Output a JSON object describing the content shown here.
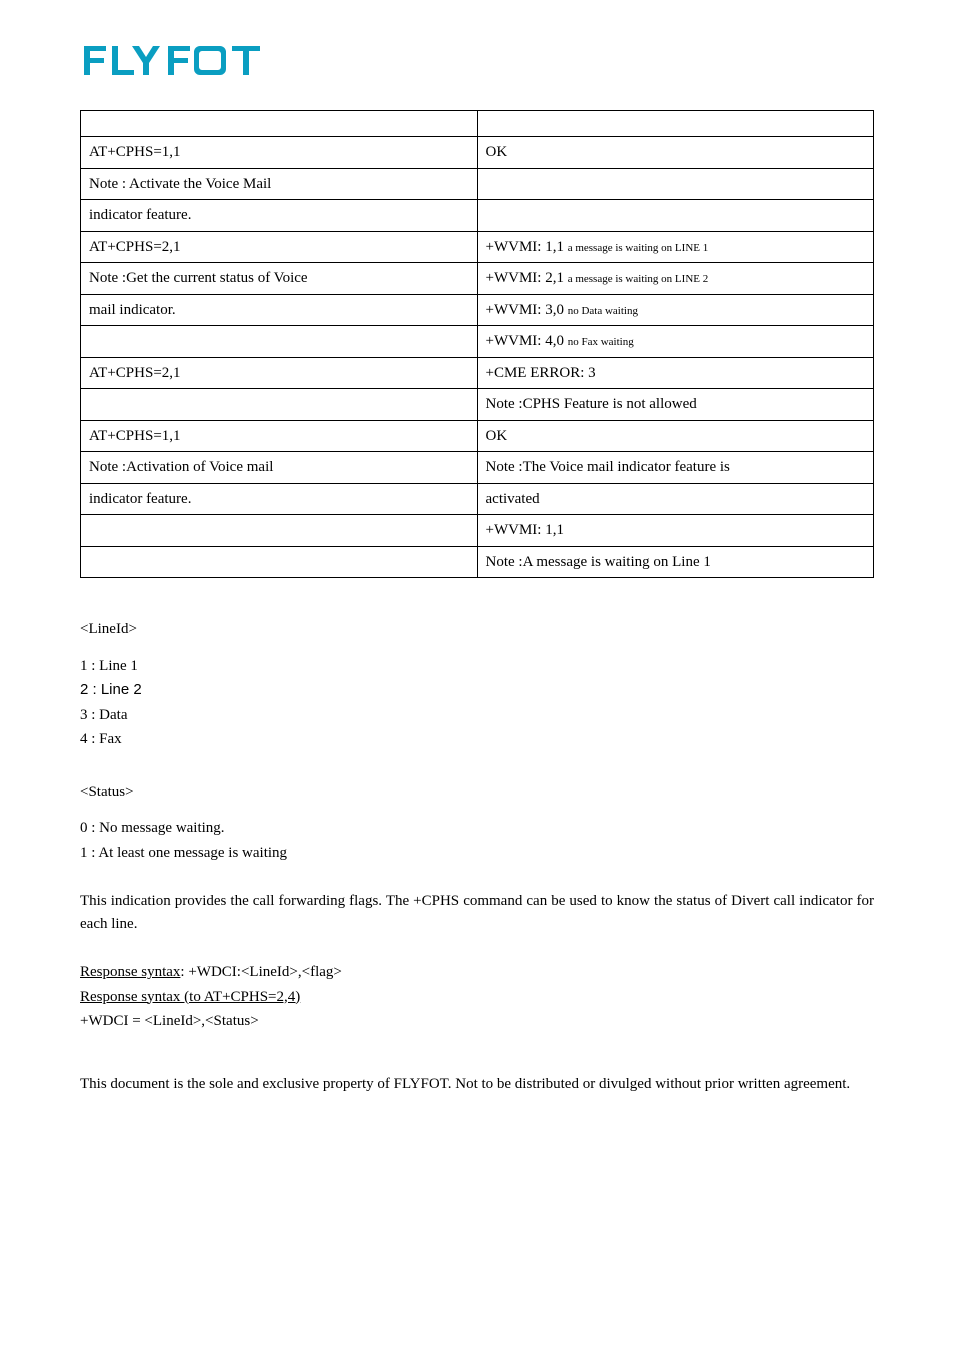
{
  "logo": {
    "text": "FLYFOT",
    "color": "#0a9ec1"
  },
  "table": {
    "rows": [
      {
        "left": "",
        "right": ""
      },
      {
        "left": "AT+CPHS=1,1",
        "right": "OK"
      },
      {
        "left": "Note : Activate the Voice Mail",
        "right": ""
      },
      {
        "left": "indicator feature.",
        "right": ""
      },
      {
        "left": "AT+CPHS=2,1",
        "right_prefix": "+WVMI: 1,1 ",
        "right_sub": "a message is waiting on LINE 1"
      },
      {
        "left": "Note :Get the current status of Voice",
        "right_prefix": "+WVMI: 2,1 ",
        "right_sub": "a message is waiting on LINE 2"
      },
      {
        "left": "mail indicator.",
        "right_prefix": "+WVMI: 3,0 ",
        "right_sub": "no Data waiting"
      },
      {
        "left": "",
        "right_prefix": "+WVMI: 4,0 ",
        "right_sub": "no Fax waiting"
      },
      {
        "left": "AT+CPHS=2,1",
        "right": "+CME ERROR: 3"
      },
      {
        "left": "",
        "right": "Note :CPHS Feature is not allowed"
      },
      {
        "left": "AT+CPHS=1,1",
        "right": "OK"
      },
      {
        "left": "Note :Activation of Voice mail",
        "right": "Note :The Voice mail indicator feature is"
      },
      {
        "left": "indicator feature.",
        "right": "activated"
      },
      {
        "left": "",
        "right": "  +WVMI: 1,1"
      },
      {
        "left": "",
        "right": "Note :A message is waiting on Line 1"
      }
    ]
  },
  "lineid": {
    "heading": "<LineId>",
    "items": [
      "1 : Line 1",
      "2 : Line 2",
      "3 : Data",
      "4 : Fax"
    ]
  },
  "status": {
    "heading": "<Status>",
    "items": [
      "0 : No message waiting.",
      "1 : At least one message is waiting"
    ]
  },
  "description": "This indication provides the call forwarding flags. The +CPHS command can be used to know the status of Divert call indicator for each line.",
  "syntax": {
    "line1_label": "Response syntax",
    "line1_rest": ": +WDCI:<LineId>,<flag>",
    "line2": "Response syntax (to AT+CPHS=2,4)  ",
    "line3": "+WDCI = <LineId>,<Status>"
  },
  "footer": "This document is the sole and exclusive property of FLYFOT. Not to be distributed or divulged without prior written agreement."
}
